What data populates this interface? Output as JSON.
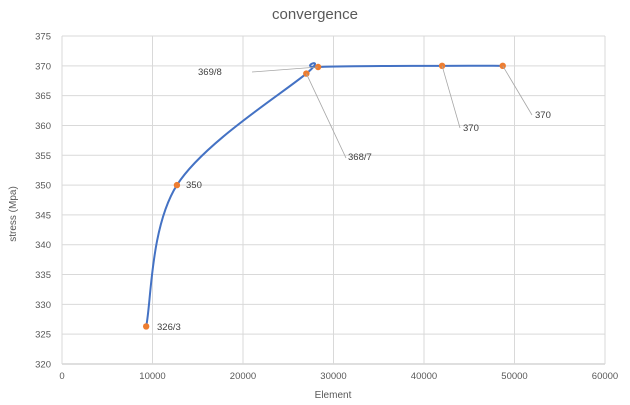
{
  "chart_data": {
    "type": "scatter",
    "title": "convergence",
    "xlabel": "Element",
    "ylabel": "stress (Mpa)",
    "xlim": [
      0,
      60000
    ],
    "ylim": [
      320,
      375
    ],
    "x_ticks": [
      0,
      10000,
      20000,
      30000,
      40000,
      50000,
      60000
    ],
    "y_ticks": [
      320,
      325,
      330,
      335,
      340,
      345,
      350,
      355,
      360,
      365,
      370,
      375
    ],
    "grid": true,
    "legend": "none",
    "series": [
      {
        "line_style": "smooth",
        "x": [
          9300,
          12700,
          27000,
          28300,
          42000,
          48700
        ],
        "y": [
          326.3,
          350,
          368.7,
          369.8,
          370,
          370
        ],
        "labels": [
          "326/3",
          "350",
          "368/7",
          "369/8",
          "370",
          "370"
        ]
      }
    ],
    "colors": {
      "line": "#4472c4",
      "marker": "#ed7d31"
    }
  }
}
